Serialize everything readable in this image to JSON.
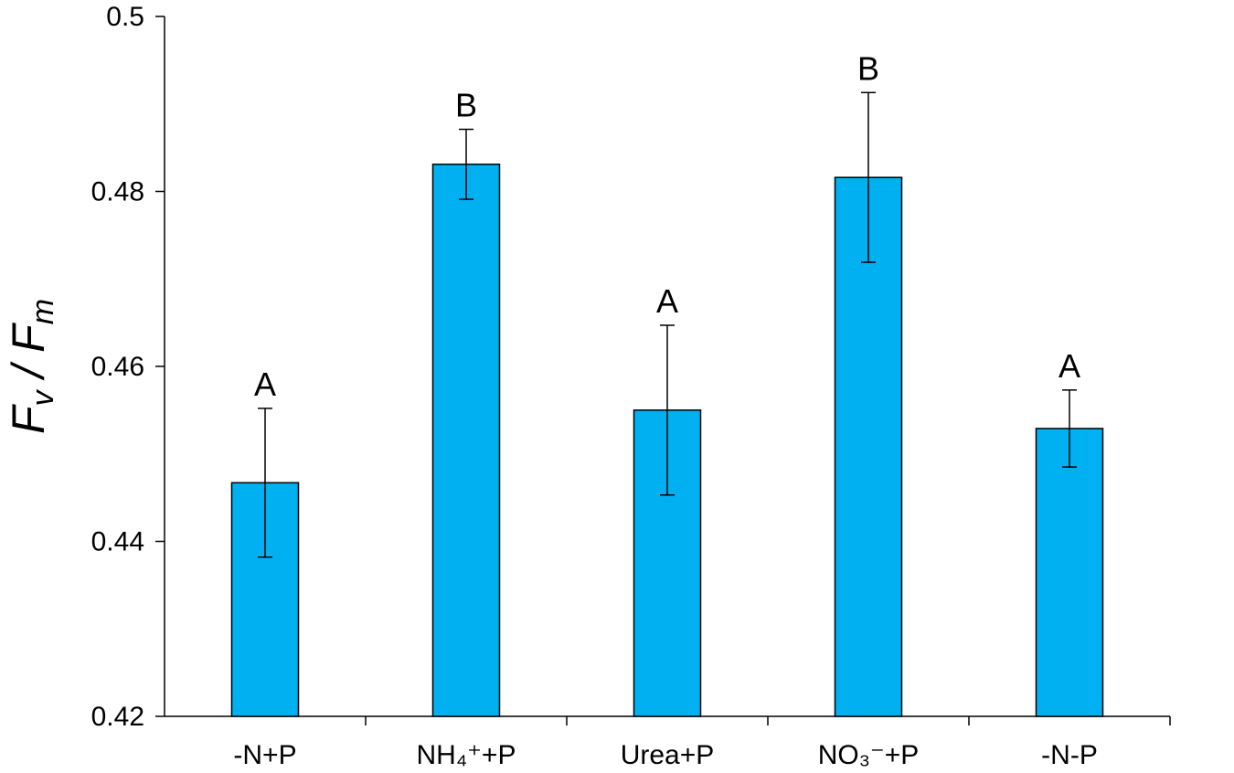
{
  "chart_data": {
    "type": "bar",
    "title": "",
    "xlabel": "",
    "ylabel": {
      "main1": "F",
      "sub1": "v",
      "sep": " / ",
      "main2": "F",
      "sub2": "m"
    },
    "categories": [
      "-N+P",
      "NH₄⁺+P",
      "Urea+P",
      "NO₃⁻+P",
      "-N-P"
    ],
    "values": [
      0.4467,
      0.4831,
      0.455,
      0.4816,
      0.4529
    ],
    "errors": [
      0.0085,
      0.004,
      0.0097,
      0.0097,
      0.0044
    ],
    "significance": [
      "A",
      "B",
      "A",
      "B",
      "A"
    ],
    "ylim": [
      0.42,
      0.5
    ],
    "yticks": [
      "0.42",
      "0.44",
      "0.46",
      "0.48",
      "0.5"
    ],
    "grid": false,
    "legend": "none",
    "colors": {
      "bar_fill": "#00b0f0",
      "bar_edge": "#000000",
      "axis": "#000000"
    }
  }
}
